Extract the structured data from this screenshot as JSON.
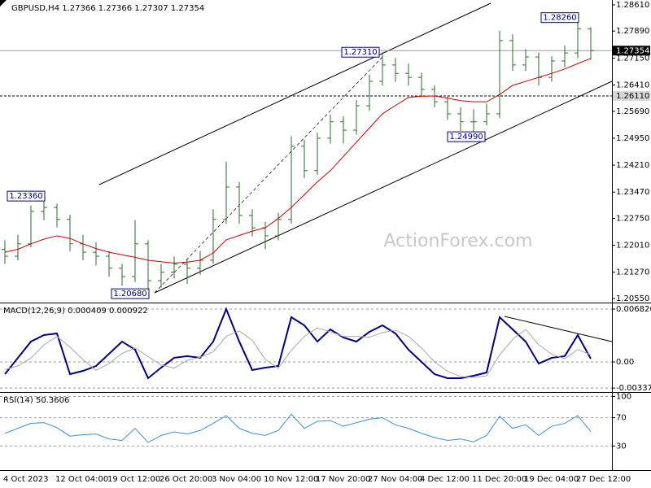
{
  "chart_data": [
    {
      "type": "ohlc",
      "title": "GBPUSD,H4  1.27366 1.27366 1.27307 1.27354",
      "watermark": "ActionForex.com",
      "categories": [
        "4 Oct 2023",
        null,
        null,
        null,
        "12 Oct 04:00",
        null,
        null,
        null,
        "19 Oct 12:00",
        null,
        null,
        null,
        "26 Oct 20:00",
        null,
        null,
        null,
        "3 Nov 04:00",
        null,
        null,
        null,
        "10 Nov 12:00",
        null,
        null,
        null,
        "17 Nov 20:00",
        null,
        null,
        null,
        "27 Nov 04:00",
        null,
        null,
        null,
        "4 Dec 12:00",
        null,
        null,
        null,
        "11 Dec 20:00",
        null,
        null,
        null,
        "19 Dec 04:00",
        null,
        null,
        null,
        "27 Dec 12:00",
        null
      ],
      "color": "#2e6b2e",
      "open": [
        1.219,
        1.2171,
        1.2205,
        1.2294,
        1.2305,
        1.2272,
        1.2205,
        1.2182,
        1.2171,
        1.2138,
        1.2115,
        1.2205,
        1.2104,
        1.2127,
        1.2149,
        1.2138,
        1.216,
        1.2272,
        1.2361,
        1.2283,
        1.2249,
        1.2227,
        1.2272,
        1.2473,
        1.2406,
        1.2495,
        1.254,
        1.2517,
        1.2584,
        1.2651,
        1.2696,
        1.2673,
        1.2662,
        1.2629,
        1.2595,
        1.2562,
        1.254,
        1.254,
        1.2562,
        1.2763,
        1.2696,
        1.2718,
        1.2662,
        1.2707,
        1.2729,
        1.2795
      ],
      "high": [
        1.2215,
        1.223,
        1.231,
        1.2336,
        1.2315,
        1.2285,
        1.223,
        1.221,
        1.2185,
        1.215,
        1.227,
        1.2215,
        1.215,
        1.217,
        1.2165,
        1.2185,
        1.23,
        1.243,
        1.2375,
        1.23,
        1.2265,
        1.229,
        1.25,
        1.249,
        1.251,
        1.256,
        1.2555,
        1.26,
        1.267,
        1.2731,
        1.2715,
        1.27,
        1.2675,
        1.264,
        1.261,
        1.258,
        1.2575,
        1.259,
        1.279,
        1.278,
        1.274,
        1.273,
        1.272,
        1.275,
        1.2826,
        1.28
      ],
      "low": [
        1.215,
        1.216,
        1.2195,
        1.227,
        1.225,
        1.2185,
        1.216,
        1.2145,
        1.2115,
        1.209,
        1.21,
        1.2068,
        1.2085,
        1.211,
        1.2095,
        1.212,
        1.215,
        1.226,
        1.226,
        1.2225,
        1.219,
        1.2215,
        1.226,
        1.2385,
        1.2395,
        1.248,
        1.248,
        1.2505,
        1.257,
        1.264,
        1.265,
        1.264,
        1.261,
        1.258,
        1.2545,
        1.2515,
        1.2499,
        1.253,
        1.255,
        1.268,
        1.268,
        1.264,
        1.265,
        1.269,
        1.2715,
        1.271
      ],
      "close": [
        1.2171,
        1.2205,
        1.2294,
        1.2305,
        1.2272,
        1.2205,
        1.2182,
        1.2171,
        1.2138,
        1.2115,
        1.2205,
        1.2104,
        1.2127,
        1.2149,
        1.2138,
        1.216,
        1.2272,
        1.2361,
        1.2283,
        1.2249,
        1.2227,
        1.2272,
        1.2473,
        1.2406,
        1.2495,
        1.254,
        1.2517,
        1.2584,
        1.2651,
        1.2696,
        1.2673,
        1.2662,
        1.2629,
        1.2595,
        1.2562,
        1.254,
        1.254,
        1.2562,
        1.2763,
        1.2696,
        1.2718,
        1.2662,
        1.2707,
        1.2729,
        1.2795,
        1.27354
      ],
      "ma": {
        "color": "#cc0000",
        "values": [
          1.2182,
          1.219,
          1.2205,
          1.2218,
          1.2227,
          1.222,
          1.2205,
          1.2192,
          1.2182,
          1.2175,
          1.2168,
          1.216,
          1.2156,
          1.2152,
          1.2155,
          1.216,
          1.218,
          1.2216,
          1.2228,
          1.224,
          1.2249,
          1.2275,
          1.2305,
          1.234,
          1.2375,
          1.2406,
          1.2445,
          1.2484,
          1.2523,
          1.2562,
          1.2585,
          1.2607,
          1.261,
          1.2611,
          1.2605,
          1.2598,
          1.2595,
          1.2595,
          1.2615,
          1.264,
          1.2651,
          1.2662,
          1.2673,
          1.2685,
          1.27,
          1.2714
        ]
      },
      "ylim": [
        1.20438,
        1.28744
      ],
      "yticks": [
        {
          "value": 1.2861,
          "label": "1.28610"
        },
        {
          "value": 1.2789,
          "label": "1.27890"
        },
        {
          "value": 1.2715,
          "label": "1.27150"
        },
        {
          "value": 1.2641,
          "label": "1.26410"
        },
        {
          "value": 1.2569,
          "label": "1.25690"
        },
        {
          "value": 1.2495,
          "label": "1.24950"
        },
        {
          "value": 1.2421,
          "label": "1.24210"
        },
        {
          "value": 1.2347,
          "label": "1.23470"
        },
        {
          "value": 1.2275,
          "label": "1.22750"
        },
        {
          "value": 1.2201,
          "label": "1.22010"
        },
        {
          "value": 1.2127,
          "label": "1.21270"
        },
        {
          "value": 1.2055,
          "label": "1.20550"
        }
      ],
      "levels": [
        {
          "value": 1.27354,
          "label": "1.27354",
          "style": "solid"
        },
        {
          "value": 1.2611,
          "label": "1.26110",
          "style": "dashed"
        }
      ],
      "annotations": [
        {
          "value": 1.2731,
          "label": "1.27310"
        },
        {
          "value": 1.2826,
          "label": "1.28260"
        },
        {
          "value": 1.2499,
          "label": "1.24990"
        },
        {
          "value": 1.2336,
          "label": "1.23360"
        },
        {
          "value": 1.2068,
          "label": "1.20680"
        }
      ]
    },
    {
      "type": "line",
      "title": "MACD(12,26,9) 0.000409 0.000922",
      "series": [
        {
          "color": "#000080",
          "values": [
            -0.00158,
            0.00053,
            0.00263,
            0.00347,
            0.00368,
            -0.00158,
            -0.00116,
            -0.00053,
            0.00105,
            0.00263,
            0.00158,
            -0.0021,
            -0.00074,
            0.00053,
            0.00074,
            0.00053,
            0.00263,
            0.00683,
            0.00263,
            -0.00105,
            -0.00074,
            -0.00053,
            0.00578,
            0.00473,
            0.00263,
            0.0042,
            0.00315,
            0.00263,
            0.00389,
            0.00473,
            0.00368,
            0.00158,
            0,
            -0.00158,
            -0.0021,
            -0.0021,
            -0.00179,
            -0.00137,
            0.00578,
            0.0042,
            0.00263,
            -0.00021,
            0.00053,
            0.00074,
            0.00347,
            0.00041
          ]
        },
        {
          "color": "#a8a8a8",
          "values": [
            -0.001,
            -0.0005,
            0.0005,
            0.0022,
            0.0033,
            0.0019,
            0.0003,
            -0.0011,
            -0.0002,
            0.0011,
            0.0018,
            0.0007,
            -0.0004,
            -0.0008,
            0.0002,
            0.0006,
            0.0013,
            0.0033,
            0.004,
            0.0028,
            0.0003,
            -0.0008,
            0.0015,
            0.0033,
            0.0044,
            0.0039,
            0.0033,
            0.0033,
            0.0032,
            0.0038,
            0.0041,
            0.0033,
            0.0018,
            0,
            -0.0012,
            -0.0019,
            -0.002,
            -0.0018,
            0.0009,
            0.0029,
            0.0042,
            0.0022,
            0.001,
            0.0004,
            0.0016,
            0.00092
          ]
        }
      ],
      "ylim": [
        -0.00389,
        0.00746
      ],
      "yticks": [
        0.006826,
        {
          "value": 0,
          "label": "0.00"
        },
        -0.003375
      ]
    },
    {
      "type": "line",
      "title": "RSI(14) 50.3606",
      "series": [
        {
          "color": "#3a8fd0",
          "values": [
            48,
            55,
            62,
            63,
            56,
            44,
            46,
            47,
            40,
            38,
            55,
            35,
            45,
            50,
            47,
            52,
            62,
            73,
            55,
            48,
            45,
            52,
            75,
            55,
            65,
            66,
            58,
            63,
            68,
            70,
            60,
            55,
            48,
            42,
            38,
            40,
            36,
            45,
            72,
            55,
            60,
            45,
            58,
            62,
            73,
            50.3606
          ]
        }
      ],
      "ylim": [
        -4,
        104
      ],
      "yticks": [
        100,
        70,
        30
      ]
    }
  ]
}
